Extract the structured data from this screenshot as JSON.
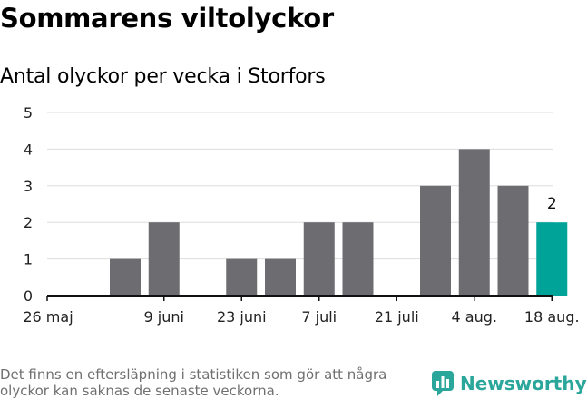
{
  "header": {
    "title": "Sommarens viltolyckor",
    "subtitle": "Antal olyckor per vecka i Storfors"
  },
  "footer": {
    "note": "Det finns en eftersläpning i statistiken som gör att några olyckor kan saknas de senaste veckorna.",
    "brand": "Newsworthy"
  },
  "icons": {
    "brand": "bar-chart-speech-bubble-icon"
  },
  "colors": {
    "bar": "#6d6c71",
    "highlight": "#00a398",
    "grid": "#dddddd",
    "axis": "#111111",
    "brand": "#2aa69a"
  },
  "chart_data": {
    "type": "bar",
    "x": [
      "2024-05-26",
      "2024-06-02",
      "2024-06-09",
      "2024-06-16",
      "2024-06-23",
      "2024-06-30",
      "2024-07-07",
      "2024-07-14",
      "2024-07-21",
      "2024-07-28",
      "2024-08-04",
      "2024-08-11",
      "2024-08-18"
    ],
    "values": [
      0,
      1,
      2,
      0,
      1,
      1,
      2,
      2,
      0,
      3,
      4,
      3,
      2
    ],
    "highlight_index": 12,
    "data_labels": [
      {
        "index": 12,
        "text": "2"
      }
    ],
    "x_ticks": [
      {
        "index": 0,
        "label": "26 maj"
      },
      {
        "index": 2,
        "label": "9 juni"
      },
      {
        "index": 4,
        "label": "23 juni"
      },
      {
        "index": 6,
        "label": "7 juli"
      },
      {
        "index": 8,
        "label": "21 juli"
      },
      {
        "index": 10,
        "label": "4 aug."
      },
      {
        "index": 12,
        "label": "18 aug."
      }
    ],
    "y_ticks": [
      0,
      1,
      2,
      3,
      4,
      5
    ],
    "ylim": [
      0,
      5
    ],
    "grid": true,
    "xlabel": "",
    "ylabel": ""
  }
}
